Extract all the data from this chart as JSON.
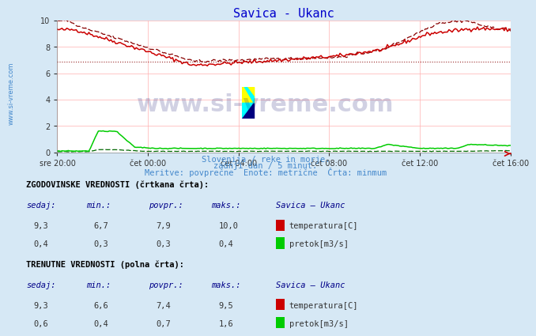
{
  "title": "Savica - Ukanc",
  "title_color": "#0000cc",
  "bg_color": "#d6e8f5",
  "plot_bg_color": "#ffffff",
  "grid_color": "#ffb0b0",
  "subtitle_lines": [
    "Slovenija / reke in morje.",
    "zadnji dan / 5 minut.",
    "Meritve: povprečne  Enote: metrične  Črta: minmum"
  ],
  "subtitle_color": "#4488cc",
  "ylim": [
    0,
    10
  ],
  "yticks": [
    0,
    2,
    4,
    6,
    8,
    10
  ],
  "x_labels": [
    "sre 20:00",
    "čet 00:00",
    "čet 04:00",
    "čet 08:00",
    "čet 12:00",
    "čet 16:00"
  ],
  "temp_color_dashed": "#880000",
  "temp_color_solid": "#cc0000",
  "flow_color_dashed": "#006600",
  "flow_color_solid": "#00cc00",
  "hline_color": "#880000",
  "hline_y": 6.9,
  "legend_text_color": "#000088",
  "table_header1": "ZGODOVINSKE VREDNOSTI (črtkana črta):",
  "table_header2": "TRENUTNE VREDNOSTI (polna črta):",
  "hist_temp": [
    9.3,
    6.7,
    7.9,
    10.0
  ],
  "hist_flow": [
    0.4,
    0.3,
    0.3,
    0.4
  ],
  "curr_temp": [
    9.3,
    6.6,
    7.4,
    9.5
  ],
  "curr_flow": [
    0.6,
    0.4,
    0.7,
    1.6
  ],
  "temp_label": "temperatura[C]",
  "flow_label": "pretok[m3/s]",
  "temp_icon_color": "#cc0000",
  "flow_icon_color": "#00cc00",
  "sidebar_color": "#4488cc"
}
